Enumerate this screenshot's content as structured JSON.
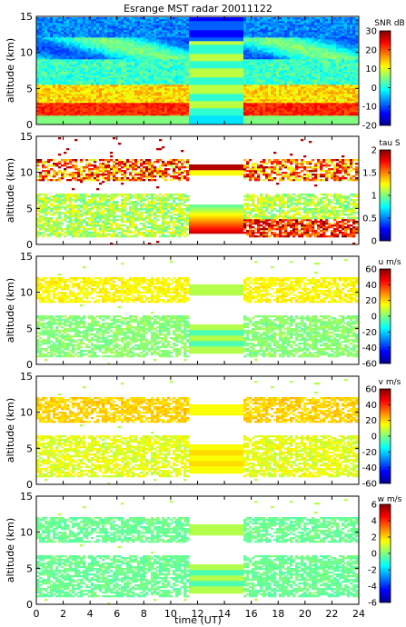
{
  "title": "Esrange MST radar 20011122",
  "x_axis": {
    "label": "time (UT)",
    "ticks": [
      0,
      2,
      4,
      6,
      8,
      10,
      12,
      14,
      16,
      18,
      20,
      22,
      24
    ],
    "range": [
      0,
      24
    ]
  },
  "gap": {
    "start": 11.3,
    "end": 15.4
  },
  "chart_data": [
    {
      "type": "heatmap",
      "name": "snr-panel",
      "ylabel": "altitude (km)",
      "yticks": [
        0,
        5,
        10,
        15
      ],
      "ylim": [
        0,
        15
      ],
      "colorbar": {
        "label": "SNR dB",
        "range": [
          -20,
          30
        ],
        "ticks": [
          30,
          20,
          10,
          0,
          -10,
          -20
        ]
      }
    },
    {
      "type": "heatmap",
      "name": "tau-panel",
      "ylabel": "altitude (km)",
      "yticks": [
        0,
        5,
        10,
        15
      ],
      "ylim": [
        0,
        15
      ],
      "colorbar": {
        "label": "tau S",
        "range": [
          0,
          2
        ],
        "ticks": [
          2,
          1.5,
          1,
          0.5,
          0
        ]
      }
    },
    {
      "type": "heatmap",
      "name": "u-wind-panel",
      "ylabel": "altitude (km)",
      "yticks": [
        0,
        5,
        10,
        15
      ],
      "ylim": [
        0,
        15
      ],
      "colorbar": {
        "label": "u m/s",
        "range": [
          -60,
          60
        ],
        "ticks": [
          60,
          40,
          20,
          0,
          -20,
          -40,
          -60
        ]
      }
    },
    {
      "type": "heatmap",
      "name": "v-wind-panel",
      "ylabel": "altitude (km)",
      "yticks": [
        0,
        5,
        10,
        15
      ],
      "ylim": [
        0,
        15
      ],
      "colorbar": {
        "label": "v m/s",
        "range": [
          -60,
          60
        ],
        "ticks": [
          60,
          40,
          20,
          0,
          -20,
          -40,
          -60
        ]
      }
    },
    {
      "type": "heatmap",
      "name": "w-wind-panel",
      "ylabel": "altitude (km)",
      "yticks": [
        0,
        5,
        10,
        15
      ],
      "ylim": [
        0,
        15
      ],
      "colorbar": {
        "label": "w m/s",
        "range": [
          -6,
          6
        ],
        "ticks": [
          6,
          4,
          2,
          0,
          -2,
          -4,
          -6
        ]
      }
    }
  ]
}
